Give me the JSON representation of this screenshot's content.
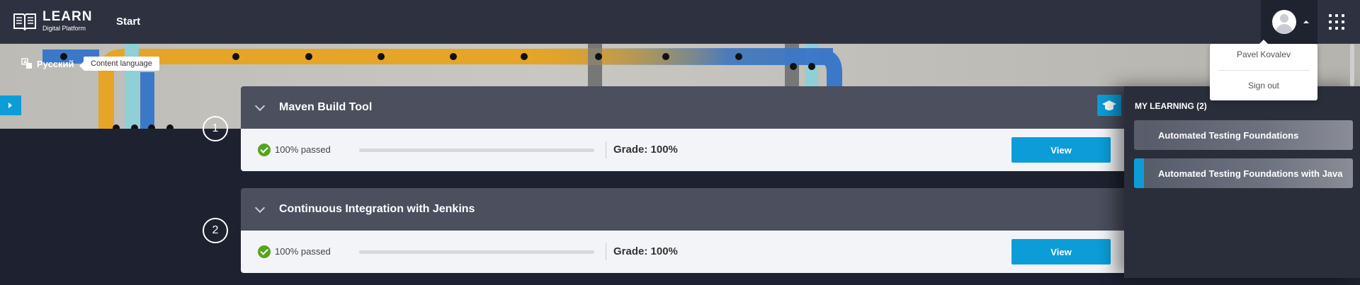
{
  "header": {
    "logo_title": "LEARN",
    "logo_subtitle": "Digital Platform",
    "nav_start": "Start",
    "user_icon": "user-avatar-icon",
    "apps_icon": "apps-grid-icon"
  },
  "banner": {
    "language_label": "Русский",
    "language_tooltip": "Content language"
  },
  "courses": [
    {
      "step": "1",
      "title": "Maven Build Tool",
      "status": "100% passed",
      "progress": 1.0,
      "grade": "Grade: 100%",
      "button": "View"
    },
    {
      "step": "2",
      "title": "Continuous Integration with Jenkins",
      "status": "100% passed",
      "progress": 1.0,
      "grade": "Grade: 100%",
      "button": "View"
    }
  ],
  "my_learning": {
    "title": "MY LEARNING (2)",
    "items": [
      {
        "label": "Automated Testing Foundations",
        "accent": "#5a5e6c"
      },
      {
        "label": "Automated Testing Foundations with Java",
        "accent": "#0c9dd8"
      }
    ]
  },
  "user_menu": {
    "name": "Pavel Kovalev",
    "sign_out": "Sign out"
  },
  "colors": {
    "accent": "#0c9dd8",
    "topbar": "#2d3140",
    "card_header": "#4b4f5e",
    "success": "#57a51e"
  }
}
